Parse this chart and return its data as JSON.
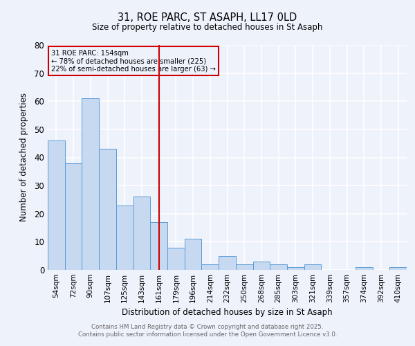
{
  "title1": "31, ROE PARC, ST ASAPH, LL17 0LD",
  "title2": "Size of property relative to detached houses in St Asaph",
  "xlabel": "Distribution of detached houses by size in St Asaph",
  "ylabel": "Number of detached properties",
  "categories": [
    "54sqm",
    "72sqm",
    "90sqm",
    "107sqm",
    "125sqm",
    "143sqm",
    "161sqm",
    "179sqm",
    "196sqm",
    "214sqm",
    "232sqm",
    "250sqm",
    "268sqm",
    "285sqm",
    "303sqm",
    "321sqm",
    "339sqm",
    "357sqm",
    "374sqm",
    "392sqm",
    "410sqm"
  ],
  "values": [
    46,
    38,
    61,
    43,
    23,
    26,
    17,
    8,
    11,
    2,
    5,
    2,
    3,
    2,
    1,
    2,
    0,
    0,
    1,
    0,
    1
  ],
  "bar_color": "#c6d9f1",
  "bar_edge_color": "#5b9bd5",
  "background_color": "#eef2fb",
  "grid_color": "#ffffff",
  "vline_x": 6,
  "vline_color": "#cc0000",
  "annotation_title": "31 ROE PARC: 154sqm",
  "annotation_line1": "← 78% of detached houses are smaller (225)",
  "annotation_line2": "22% of semi-detached houses are larger (63) →",
  "annotation_box_color": "#cc0000",
  "ylim": [
    0,
    80
  ],
  "yticks": [
    0,
    10,
    20,
    30,
    40,
    50,
    60,
    70,
    80
  ],
  "footer1": "Contains HM Land Registry data © Crown copyright and database right 2025.",
  "footer2": "Contains public sector information licensed under the Open Government Licence v3.0."
}
